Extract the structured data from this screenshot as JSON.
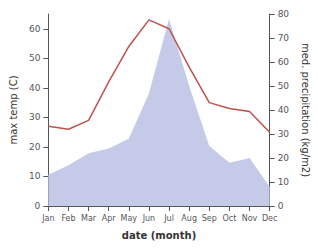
{
  "chart_data": {
    "type": "line",
    "xlabel": "date (month)",
    "ylabel": "max temp (C)",
    "y2label": "med. precipitation (kg/m2)",
    "categories": [
      "Jan",
      "Feb",
      "Mar",
      "Apr",
      "May",
      "Jun",
      "Jul",
      "Aug",
      "Sep",
      "Oct",
      "Nov",
      "Dec"
    ],
    "series": [
      {
        "type": "area",
        "axis": "y2",
        "color": "#c5cae9",
        "values": [
          13,
          17,
          22,
          24,
          28,
          47,
          78,
          50,
          25,
          18,
          20,
          8
        ]
      },
      {
        "type": "line",
        "color": "#c0504d",
        "values": [
          27,
          26,
          29,
          42,
          54,
          63,
          60,
          47,
          35,
          33,
          32,
          25
        ]
      }
    ],
    "ylim": [
      0,
      65
    ],
    "yticks": [
      0,
      10,
      20,
      30,
      40,
      50,
      60
    ],
    "y2lim": [
      0,
      80
    ],
    "y2ticks": [
      0,
      10,
      20,
      30,
      40,
      50,
      60,
      70,
      80
    ],
    "grid": false
  }
}
